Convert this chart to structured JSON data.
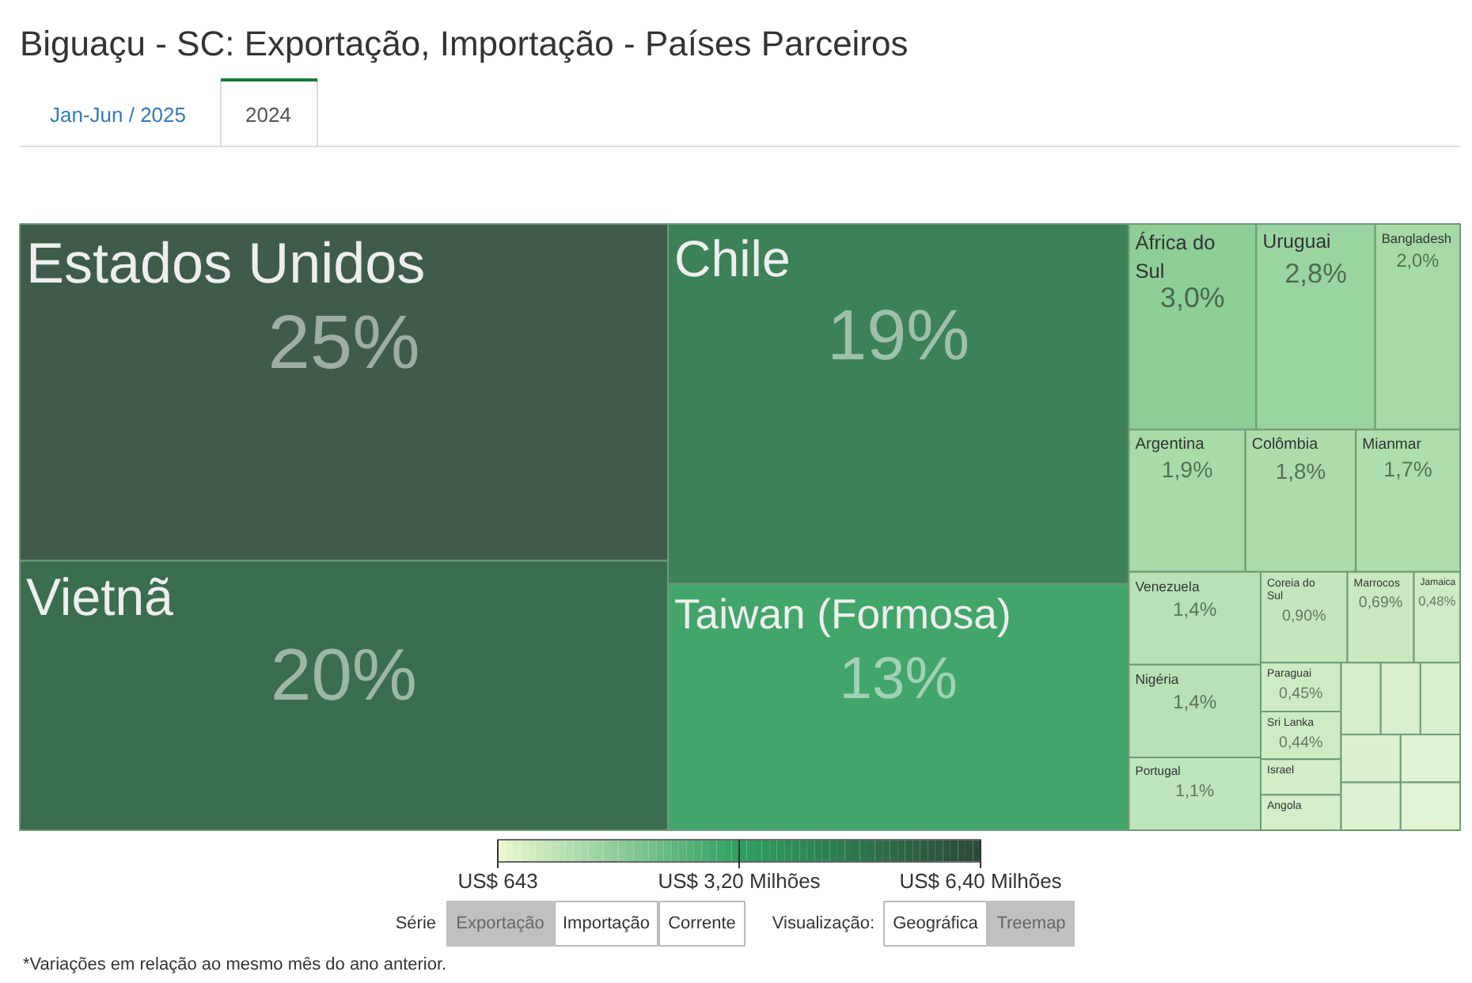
{
  "chart_data": {
    "type": "other",
    "title": "Biguaçu - SC: Exportação, Importação - Países Parceiros",
    "categories": [
      "Estados Unidos",
      "Vietnã",
      "Chile",
      "Taiwan (Formosa)",
      "África do Sul",
      "Uruguai",
      "Bangladesh",
      "Argentina",
      "Colômbia",
      "Mianmar",
      "Venezuela",
      "Nigéria",
      "Portugal",
      "Coreia do Sul",
      "Marrocos",
      "Jamaica",
      "Paraguai",
      "Sri Lanka",
      "Israel",
      "Angola",
      null,
      null,
      null,
      null,
      null,
      null,
      null
    ],
    "values": [
      25,
      20,
      19,
      13,
      3.0,
      2.8,
      2.0,
      1.9,
      1.8,
      1.7,
      1.4,
      1.4,
      1.1,
      0.9,
      0.69,
      0.48,
      0.45,
      0.44,
      null,
      null,
      null,
      null,
      null,
      null,
      null,
      null,
      null
    ],
    "value_labels": [
      "25%",
      "20%",
      "19%",
      "13%",
      "3,0%",
      "2,8%",
      "2,0%",
      "1,9%",
      "1,8%",
      "1,7%",
      "1,4%",
      "1,4%",
      "1,1%",
      "0,90%",
      "0,69%",
      "0,48%",
      "0,45%",
      "0,44%",
      null,
      null,
      null,
      null,
      null,
      null,
      null,
      null,
      null
    ],
    "colors": [
      "#3e5c49",
      "#3b6e4f",
      "#3c8157",
      "#42a56a",
      "#8ecf98",
      "#9ad5a1",
      "#a6daa7",
      "#a9dba9",
      "#acdcab",
      "#aedead",
      "#b8e2b5",
      "#b8e2b5",
      "#bfe5ba",
      "#c3e6bd",
      "#c9e9c1",
      "#cdebc4",
      "#ceecc4",
      "#ceecc4",
      "#d2edc7",
      "#d3eec8",
      "#d5efca",
      "#d7efcb",
      "#d8f0cc",
      "#dbf1ce",
      "#ddf2d0",
      "#e0f3d2",
      "#e2f4d3"
    ],
    "annotations": [
      "Jan-Jun / 2025",
      "2024",
      "Série",
      "Exportação",
      "Importação",
      "Corrente",
      "Visualização:",
      "Geográfica",
      "Treemap",
      "*Variações em relação ao mesmo mês do ano anterior.",
      "US$ 643",
      "US$ 3,20 Milhões",
      "US$ 6,40 Milhões"
    ]
  }
}
